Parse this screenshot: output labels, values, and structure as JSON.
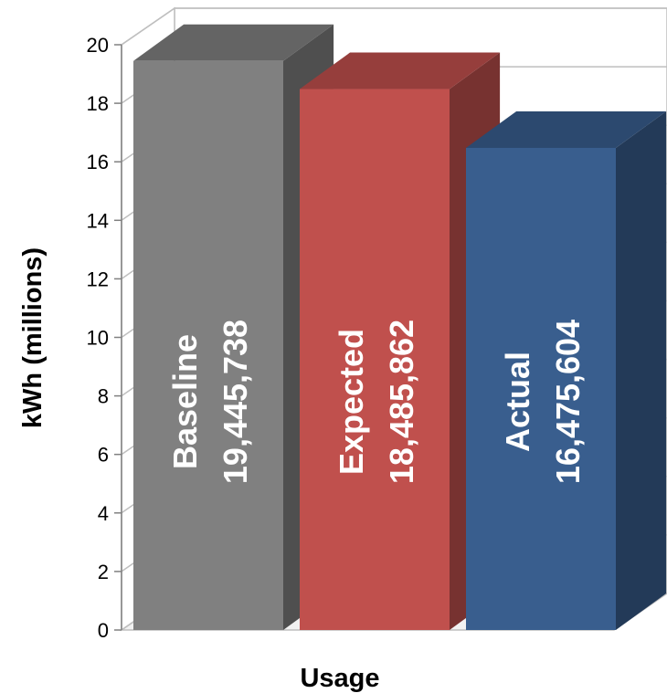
{
  "chart_data": {
    "type": "bar",
    "style": "3d-column",
    "categories": [
      "Baseline",
      "Expected",
      "Actual"
    ],
    "values": [
      19.445738,
      18.485862,
      16.475604
    ],
    "value_labels": [
      "19,445,738",
      "18,485,862",
      "16,475,604"
    ],
    "colors": [
      "#808080",
      "#C0504D",
      "#395E8E"
    ],
    "ticks": [
      "0",
      "2",
      "4",
      "6",
      "8",
      "10",
      "12",
      "14",
      "16",
      "18",
      "20"
    ],
    "ylim": [
      0,
      20
    ],
    "ylabel": "kWh (millions)",
    "xlabel": "Usage",
    "grid": true
  }
}
